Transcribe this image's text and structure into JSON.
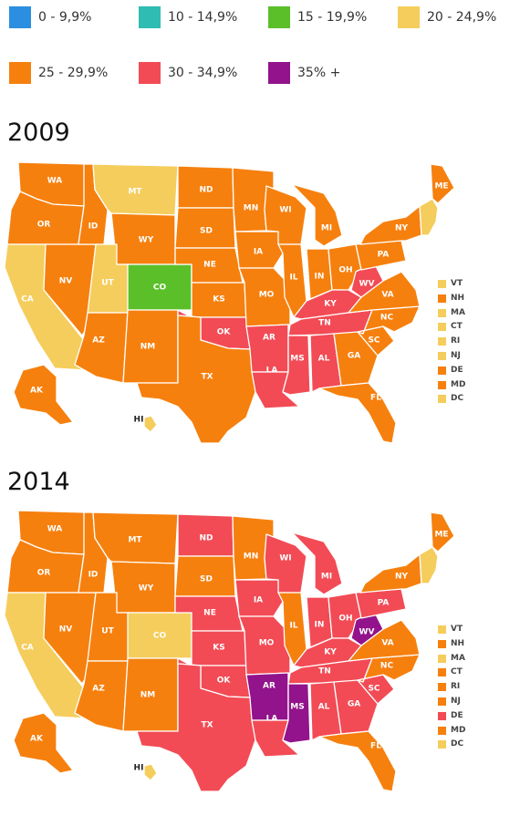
{
  "legend": [
    {
      "label": "0 - 9,9%",
      "color": "#2b8ee0"
    },
    {
      "label": "10 - 14,9%",
      "color": "#2ebcb3"
    },
    {
      "label": "15 - 19,9%",
      "color": "#5bbf2a"
    },
    {
      "label": "20 - 24,9%",
      "color": "#f5cd5c"
    },
    {
      "label": "25 - 29,9%",
      "color": "#f6800e"
    },
    {
      "label": "30 - 34,9%",
      "color": "#f24b55"
    },
    {
      "label": "35% +",
      "color": "#92138b"
    }
  ],
  "maps": [
    {
      "year": "2009",
      "states": {
        "WA": "orange",
        "OR": "orange",
        "CA": "yellow",
        "NV": "orange",
        "ID": "orange",
        "MT": "yellow",
        "WY": "orange",
        "UT": "yellow",
        "CO": "green",
        "AZ": "orange",
        "NM": "orange",
        "ND": "orange",
        "SD": "orange",
        "NE": "orange",
        "KS": "orange",
        "OK": "red",
        "TX": "orange",
        "MN": "orange",
        "IA": "orange",
        "MO": "orange",
        "AR": "red",
        "LA": "red",
        "WI": "orange",
        "IL": "orange",
        "MI": "orange",
        "IN": "orange",
        "OH": "orange",
        "KY": "red",
        "TN": "red",
        "MS": "red",
        "AL": "red",
        "GA": "orange",
        "FL": "orange",
        "SC": "orange",
        "NC": "orange",
        "VA": "orange",
        "WV": "red",
        "PA": "orange",
        "NY": "orange",
        "ME": "orange",
        "AK": "orange",
        "HI": "yellow",
        "NE_REG": "yellow"
      },
      "small": [
        {
          "label": "VT",
          "cat": "yellow"
        },
        {
          "label": "NH",
          "cat": "orange"
        },
        {
          "label": "MA",
          "cat": "yellow"
        },
        {
          "label": "CT",
          "cat": "yellow"
        },
        {
          "label": "RI",
          "cat": "yellow"
        },
        {
          "label": "NJ",
          "cat": "yellow"
        },
        {
          "label": "DE",
          "cat": "orange"
        },
        {
          "label": "MD",
          "cat": "orange"
        },
        {
          "label": "DC",
          "cat": "yellow"
        }
      ]
    },
    {
      "year": "2014",
      "states": {
        "WA": "orange",
        "OR": "orange",
        "CA": "yellow",
        "NV": "orange",
        "ID": "orange",
        "MT": "orange",
        "WY": "orange",
        "UT": "orange",
        "CO": "yellow",
        "AZ": "orange",
        "NM": "orange",
        "ND": "red",
        "SD": "orange",
        "NE": "red",
        "KS": "red",
        "OK": "red",
        "TX": "red",
        "MN": "orange",
        "IA": "red",
        "MO": "red",
        "AR": "purple",
        "LA": "red",
        "WI": "red",
        "IL": "orange",
        "MI": "red",
        "IN": "red",
        "OH": "red",
        "KY": "red",
        "TN": "red",
        "MS": "purple",
        "AL": "red",
        "GA": "red",
        "FL": "orange",
        "SC": "red",
        "NC": "orange",
        "VA": "orange",
        "WV": "purple",
        "PA": "red",
        "NY": "orange",
        "ME": "orange",
        "AK": "orange",
        "HI": "yellow",
        "NE_REG": "yellow"
      },
      "small": [
        {
          "label": "VT",
          "cat": "yellow"
        },
        {
          "label": "NH",
          "cat": "orange"
        },
        {
          "label": "MA",
          "cat": "yellow"
        },
        {
          "label": "CT",
          "cat": "orange"
        },
        {
          "label": "RI",
          "cat": "orange"
        },
        {
          "label": "NJ",
          "cat": "orange"
        },
        {
          "label": "DE",
          "cat": "red"
        },
        {
          "label": "MD",
          "cat": "orange"
        },
        {
          "label": "DC",
          "cat": "yellow"
        }
      ]
    }
  ],
  "colors": {
    "yellow": "#f5cd5c",
    "orange": "#f6800e",
    "green": "#5bbf2a",
    "red": "#f24b55",
    "purple": "#92138b"
  }
}
